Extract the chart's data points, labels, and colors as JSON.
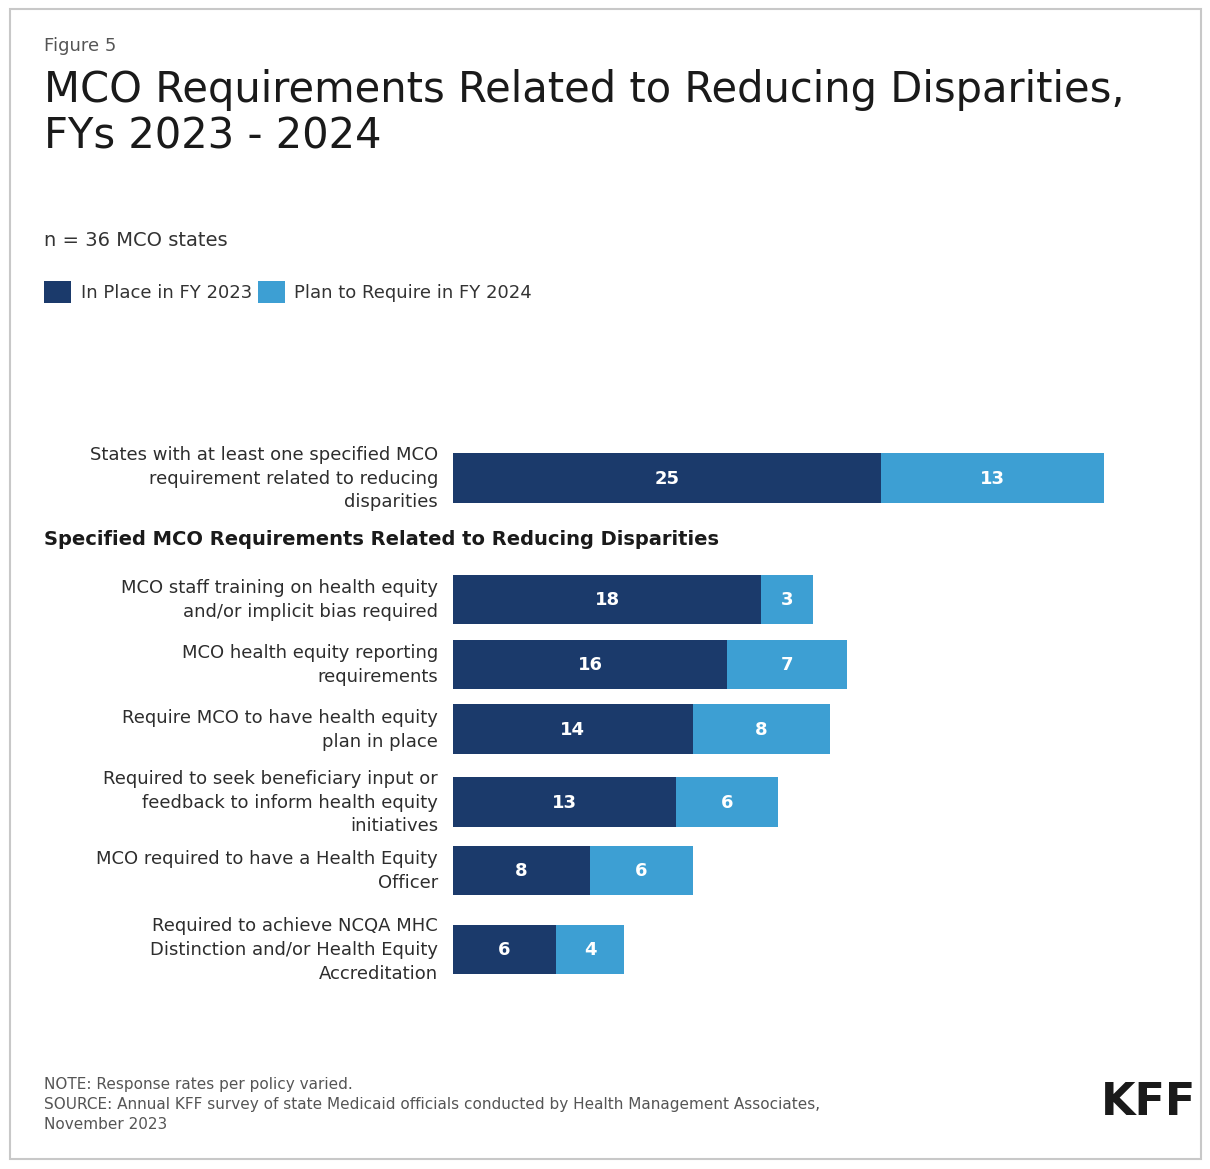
{
  "figure_label": "Figure 5",
  "title_line1": "MCO Requirements Related to Reducing Disparities,",
  "title_line2": "FYs 2023 - 2024",
  "subtitle": "n = 36 MCO states",
  "legend": [
    {
      "label": "In Place in FY 2023",
      "color": "#1b3a6b"
    },
    {
      "label": "Plan to Require in FY 2024",
      "color": "#3d9fd3"
    }
  ],
  "section_header": "Specified MCO Requirements Related to Reducing Disparities",
  "categories": [
    "States with at least one specified MCO\nrequirement related to reducing\ndisparities",
    "MCO staff training on health equity\nand/or implicit bias required",
    "MCO health equity reporting\nrequirements",
    "Require MCO to have health equity\nplan in place",
    "Required to seek beneficiary input or\nfeedback to inform health equity\ninitiatives",
    "MCO required to have a Health Equity\nOfficer",
    "Required to achieve NCQA MHC\nDistinction and/or Health Equity\nAccreditation"
  ],
  "values_2023": [
    25,
    18,
    16,
    14,
    13,
    8,
    6
  ],
  "values_2024": [
    13,
    3,
    7,
    8,
    6,
    6,
    4
  ],
  "color_2023": "#1b3a6b",
  "color_2024": "#3d9fd3",
  "xlim": 42,
  "note_text": "NOTE: Response rates per policy varied.\nSOURCE: Annual KFF survey of state Medicaid officials conducted by Health Management Associates,\nNovember 2023",
  "background_color": "#ffffff",
  "text_color": "#2d2d2d",
  "label_color_white": "#ffffff",
  "bar_height": 0.52
}
